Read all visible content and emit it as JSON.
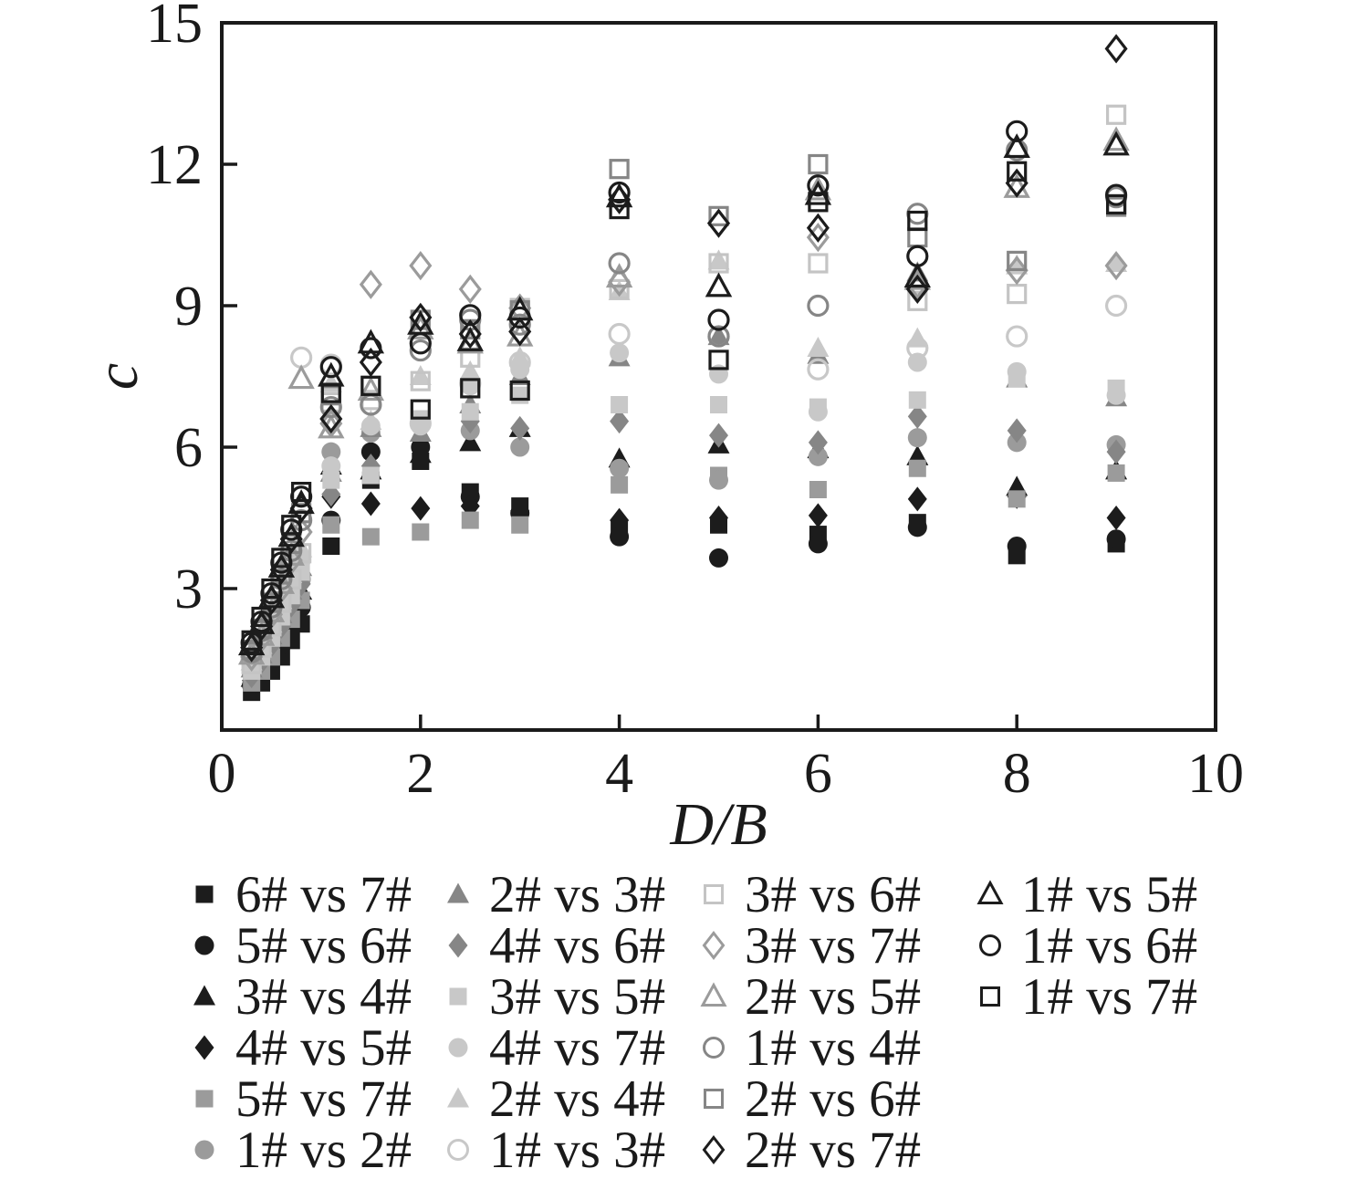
{
  "chart_data": {
    "type": "scatter",
    "title": "",
    "xlabel": "D/B",
    "ylabel": "c",
    "xlim": [
      0,
      10
    ],
    "ylim": [
      0,
      15
    ],
    "xticks": [
      0,
      2,
      4,
      6,
      8,
      10
    ],
    "yticks": [
      3,
      6,
      9,
      12,
      15
    ],
    "grid": false,
    "legend_position": "bottom",
    "axis_color": "#1a1a1a",
    "marker_colors": {
      "black": "#1c1c1c",
      "gray": "#9b9b9b",
      "dark_gray": "#868686",
      "light_gray": "#c8c8c8"
    },
    "x": [
      0.3,
      0.4,
      0.5,
      0.6,
      0.7,
      0.8,
      1.1,
      1.5,
      2,
      2.5,
      3,
      4,
      5,
      6,
      7,
      8,
      9
    ],
    "series": [
      {
        "name": "6# vs 7#",
        "marker": "square",
        "fill": "filled",
        "color": "#1c1c1c",
        "values": [
          0.8,
          1.0,
          1.25,
          1.55,
          1.9,
          2.25,
          3.9,
          5.3,
          5.7,
          5.05,
          4.75,
          4.25,
          4.35,
          4.15,
          4.4,
          3.7,
          3.95
        ]
      },
      {
        "name": "5# vs 6#",
        "marker": "circle",
        "fill": "filled",
        "color": "#1c1c1c",
        "values": [
          0.95,
          1.15,
          1.45,
          1.8,
          2.2,
          2.6,
          4.45,
          5.9,
          6.0,
          4.95,
          4.6,
          4.1,
          3.65,
          3.95,
          4.3,
          3.9,
          4.05
        ]
      },
      {
        "name": "3# vs 4#",
        "marker": "triangle",
        "fill": "filled",
        "color": "#1c1c1c",
        "values": [
          1.1,
          1.35,
          1.7,
          2.1,
          2.5,
          2.95,
          5.6,
          5.5,
          5.85,
          6.1,
          6.4,
          5.75,
          6.05,
          5.95,
          5.8,
          5.15,
          5.5
        ]
      },
      {
        "name": "4# vs 5#",
        "marker": "diamond",
        "fill": "filled",
        "color": "#1c1c1c",
        "values": [
          1.05,
          1.3,
          1.6,
          2.0,
          2.4,
          2.8,
          4.95,
          4.8,
          4.7,
          4.75,
          4.65,
          4.45,
          4.5,
          4.55,
          4.9,
          4.95,
          4.5
        ]
      },
      {
        "name": "5# vs 7#",
        "marker": "square",
        "fill": "filled",
        "color": "#9b9b9b",
        "values": [
          1.0,
          1.25,
          1.55,
          1.95,
          2.35,
          2.75,
          4.35,
          4.1,
          4.2,
          4.45,
          4.35,
          5.2,
          5.4,
          5.1,
          5.55,
          4.9,
          5.45
        ]
      },
      {
        "name": "1# vs 2#",
        "marker": "circle",
        "fill": "filled",
        "color": "#9b9b9b",
        "values": [
          1.2,
          1.5,
          1.85,
          2.3,
          2.75,
          3.2,
          5.9,
          6.3,
          6.55,
          6.35,
          6.0,
          5.55,
          5.3,
          5.8,
          6.2,
          6.1,
          6.05
        ]
      },
      {
        "name": "2# vs 3#",
        "marker": "triangle",
        "fill": "filled",
        "color": "#868686",
        "values": [
          1.3,
          1.6,
          2.0,
          2.45,
          2.95,
          3.45,
          5.45,
          6.4,
          6.3,
          6.9,
          7.5,
          7.9,
          8.35,
          7.95,
          9.7,
          7.45,
          7.05
        ]
      },
      {
        "name": "4# vs 6#",
        "marker": "diamond",
        "fill": "filled",
        "color": "#868686",
        "values": [
          1.15,
          1.45,
          1.8,
          2.2,
          2.65,
          3.1,
          5.0,
          5.6,
          6.45,
          6.55,
          6.4,
          6.55,
          6.25,
          6.1,
          6.65,
          6.35,
          5.9
        ]
      },
      {
        "name": "3# vs 5#",
        "marker": "square",
        "fill": "filled",
        "color": "#c8c8c8",
        "values": [
          1.25,
          1.55,
          1.95,
          2.4,
          2.85,
          3.35,
          5.3,
          5.4,
          6.6,
          6.75,
          7.1,
          6.9,
          6.9,
          6.85,
          7.0,
          7.45,
          7.25
        ]
      },
      {
        "name": "4# vs 7#",
        "marker": "circle",
        "fill": "filled",
        "color": "#c8c8c8",
        "values": [
          1.35,
          1.7,
          2.1,
          2.6,
          3.1,
          3.6,
          5.6,
          6.45,
          6.45,
          7.3,
          7.65,
          8.0,
          7.55,
          6.75,
          7.8,
          7.6,
          7.1
        ]
      },
      {
        "name": "2# vs 4#",
        "marker": "triangle",
        "fill": "filled",
        "color": "#c8c8c8",
        "values": [
          1.45,
          1.8,
          2.25,
          2.75,
          3.3,
          3.85,
          7.35,
          6.55,
          7.5,
          7.6,
          7.9,
          9.3,
          9.95,
          8.1,
          8.3,
          9.85,
          9.9
        ]
      },
      {
        "name": "1# vs 3#",
        "marker": "circle",
        "fill": "open",
        "color": "#c8c8c8",
        "values": [
          1.5,
          1.9,
          2.35,
          2.9,
          3.45,
          7.9,
          7.75,
          6.9,
          6.5,
          7.35,
          7.8,
          8.4,
          8.35,
          7.65,
          8.1,
          8.35,
          9.0
        ]
      },
      {
        "name": "3# vs 6#",
        "marker": "square",
        "fill": "open",
        "color": "#c4c4c4",
        "values": [
          1.4,
          1.75,
          2.2,
          2.7,
          3.2,
          3.75,
          6.95,
          7.0,
          7.4,
          7.9,
          8.95,
          9.35,
          9.9,
          9.9,
          9.1,
          9.25,
          13.05
        ]
      },
      {
        "name": "3# vs 7#",
        "marker": "diamond",
        "fill": "open",
        "color": "#9b9b9b",
        "values": [
          1.55,
          1.95,
          2.45,
          3.0,
          3.6,
          4.2,
          6.5,
          9.45,
          9.85,
          9.35,
          8.95,
          9.5,
          10.75,
          10.45,
          9.45,
          9.75,
          9.85
        ]
      },
      {
        "name": "2# vs 5#",
        "marker": "triangle",
        "fill": "open",
        "color": "#9b9b9b",
        "values": [
          1.6,
          2.0,
          2.5,
          3.1,
          3.7,
          7.45,
          6.4,
          7.2,
          8.5,
          8.2,
          8.35,
          9.6,
          9.4,
          11.45,
          9.55,
          11.5,
          12.5
        ]
      },
      {
        "name": "1# vs 4#",
        "marker": "circle",
        "fill": "open",
        "color": "#868686",
        "values": [
          1.65,
          2.1,
          2.6,
          3.2,
          3.8,
          4.45,
          6.85,
          6.9,
          8.05,
          8.7,
          8.6,
          9.9,
          8.35,
          9.0,
          10.95,
          12.3,
          11.3
        ]
      },
      {
        "name": "2# vs 6#",
        "marker": "square",
        "fill": "open",
        "color": "#868686",
        "values": [
          1.7,
          2.15,
          2.7,
          3.3,
          3.95,
          4.6,
          7.1,
          7.3,
          8.7,
          8.5,
          8.9,
          11.9,
          10.9,
          12.0,
          10.45,
          9.95,
          11.1
        ]
      },
      {
        "name": "2# vs 7#",
        "marker": "diamond",
        "fill": "open",
        "color": "#1c1c1c",
        "values": [
          1.75,
          2.2,
          2.75,
          3.4,
          4.05,
          4.7,
          6.6,
          7.8,
          8.75,
          8.4,
          8.45,
          11.25,
          10.75,
          10.65,
          9.35,
          11.6,
          14.45
        ]
      },
      {
        "name": "1# vs 5#",
        "marker": "triangle",
        "fill": "open",
        "color": "#1c1c1c",
        "values": [
          1.8,
          2.25,
          2.8,
          3.45,
          4.1,
          4.8,
          7.5,
          8.2,
          8.6,
          8.25,
          8.9,
          11.3,
          9.4,
          11.35,
          9.6,
          12.35,
          12.4
        ]
      },
      {
        "name": "1# vs 6#",
        "marker": "circle",
        "fill": "open",
        "color": "#1c1c1c",
        "values": [
          1.85,
          2.3,
          2.9,
          3.55,
          4.25,
          4.95,
          7.7,
          8.1,
          8.2,
          8.8,
          8.75,
          11.4,
          8.7,
          11.55,
          10.05,
          12.7,
          11.35
        ]
      },
      {
        "name": "1# vs 7#",
        "marker": "square",
        "fill": "open",
        "color": "#1c1c1c",
        "values": [
          1.9,
          2.4,
          3.0,
          3.65,
          4.35,
          5.05,
          7.15,
          7.3,
          6.8,
          7.25,
          7.2,
          11.05,
          7.85,
          11.2,
          10.8,
          11.85,
          11.15
        ]
      }
    ]
  }
}
